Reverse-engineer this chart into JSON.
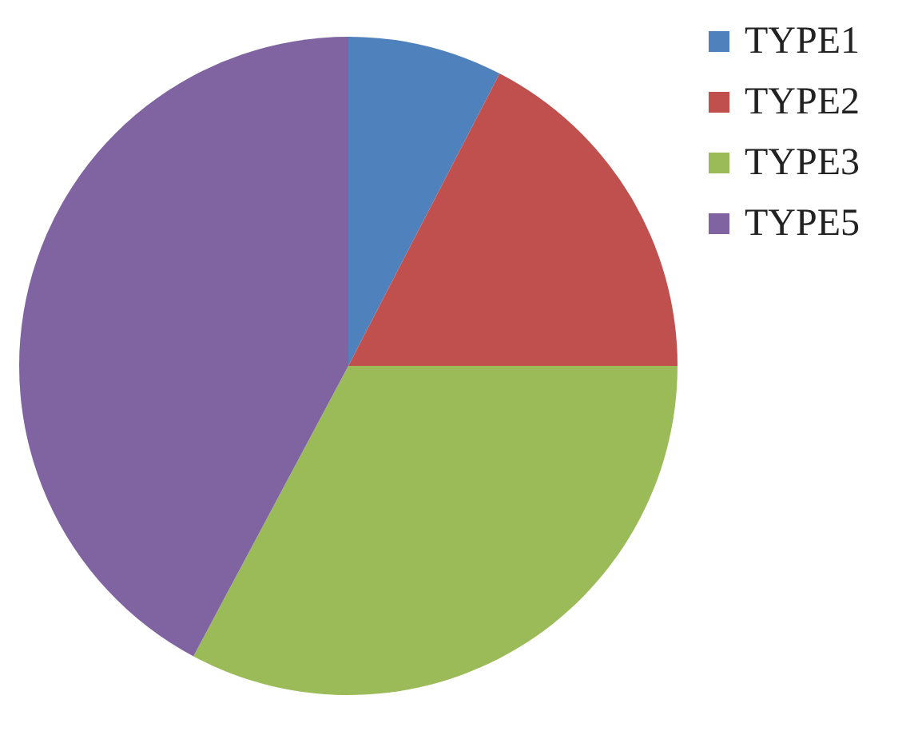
{
  "chart_data": {
    "type": "pie",
    "categories": [
      "TYPE1",
      "TYPE2",
      "TYPE3",
      "TYPE5"
    ],
    "values": [
      7.6,
      17.4,
      32.8,
      42.2
    ],
    "colors": [
      "#4f81bd",
      "#c0504d",
      "#9bbb59",
      "#8064a2"
    ],
    "legend": "right"
  }
}
